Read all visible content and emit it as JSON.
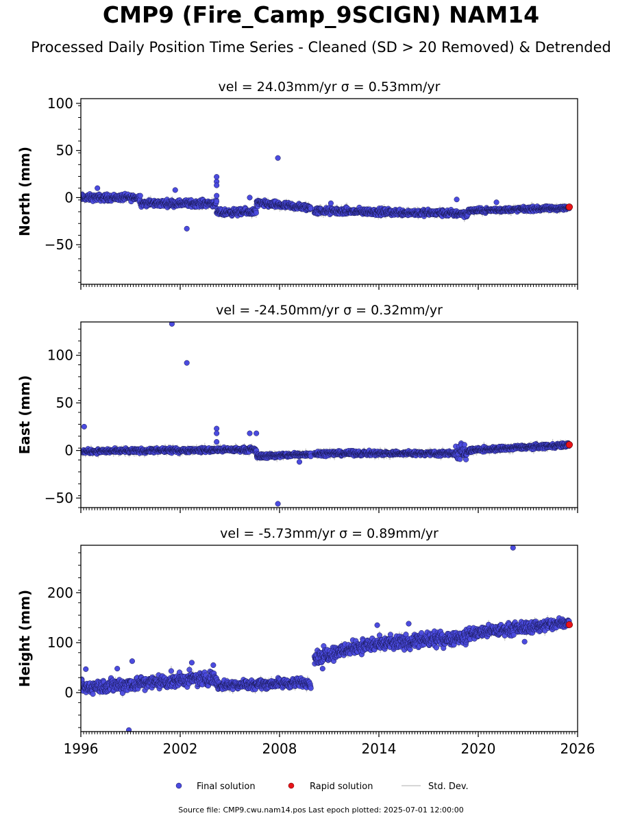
{
  "title": "CMP9 (Fire_Camp_9SCIGN) NAM14",
  "subtitle": "Processed Daily Position Time Series - Cleaned (SD > 20 Removed) & Detrended",
  "source_note": "Source file: CMP9.cwu.nam14.pos  Last epoch plotted: 2025-07-01 12:00:00",
  "colors": {
    "final": "#4b4bdf",
    "rapid": "#e8141a",
    "stddev": "#c8c8c8"
  },
  "legend": {
    "final": "Final solution",
    "rapid": "Rapid solution",
    "stddev": "Std. Dev."
  },
  "chart_data": [
    {
      "type": "scatter",
      "title": "vel = 24.03mm/yr   σ = 0.53mm/yr",
      "ylabel": "North (mm)",
      "xlim": [
        1996,
        2026
      ],
      "ylim": [
        -92,
        105
      ],
      "yticks": [
        -50,
        0,
        50,
        100
      ],
      "xticks": [
        1996,
        2002,
        2008,
        2014,
        2020,
        2026
      ],
      "segments": [
        {
          "x0": 1996.0,
          "x1": 1999.6,
          "y0": 0,
          "y1": 0,
          "spread": 3
        },
        {
          "x0": 1999.6,
          "x1": 2004.2,
          "y0": -6,
          "y1": -6,
          "spread": 3
        },
        {
          "x0": 2004.2,
          "x1": 2006.6,
          "y0": -16,
          "y1": -15,
          "spread": 3
        },
        {
          "x0": 2006.6,
          "x1": 2009.9,
          "y0": -6,
          "y1": -11,
          "spread": 3
        },
        {
          "x0": 2010.1,
          "x1": 2019.4,
          "y0": -14,
          "y1": -17,
          "spread": 3
        },
        {
          "x0": 2019.4,
          "x1": 2025.5,
          "y0": -14,
          "y1": -11,
          "spread": 2
        }
      ],
      "outliers": [
        {
          "x": 1997.0,
          "y": 10
        },
        {
          "x": 2001.7,
          "y": 8
        },
        {
          "x": 2002.4,
          "y": -33
        },
        {
          "x": 2004.2,
          "y": 22
        },
        {
          "x": 2004.2,
          "y": 17
        },
        {
          "x": 2004.2,
          "y": 13
        },
        {
          "x": 2004.2,
          "y": 2
        },
        {
          "x": 2006.2,
          "y": 0
        },
        {
          "x": 2007.9,
          "y": 42
        },
        {
          "x": 2011.1,
          "y": -6
        },
        {
          "x": 2018.7,
          "y": -2
        },
        {
          "x": 2021.1,
          "y": -5
        }
      ],
      "rapid": [
        {
          "x": 2025.5,
          "y": -10
        }
      ]
    },
    {
      "type": "scatter",
      "title": "vel = -24.50mm/yr   σ = 0.32mm/yr",
      "ylabel": "East (mm)",
      "xlim": [
        1996,
        2026
      ],
      "ylim": [
        -60,
        135
      ],
      "yticks": [
        -50,
        0,
        50,
        100
      ],
      "xticks": [
        1996,
        2002,
        2008,
        2014,
        2020,
        2026
      ],
      "segments": [
        {
          "x0": 1996.0,
          "x1": 2006.6,
          "y0": -1,
          "y1": 1,
          "spread": 2
        },
        {
          "x0": 2006.6,
          "x1": 2009.9,
          "y0": -6,
          "y1": -4,
          "spread": 2
        },
        {
          "x0": 2010.1,
          "x1": 2018.6,
          "y0": -3,
          "y1": -3,
          "spread": 2
        },
        {
          "x0": 2018.6,
          "x1": 2019.3,
          "y0": -2,
          "y1": -3,
          "spread": 8
        },
        {
          "x0": 2019.3,
          "x1": 2025.5,
          "y0": 0,
          "y1": 6,
          "spread": 2
        }
      ],
      "outliers": [
        {
          "x": 1996.2,
          "y": 25
        },
        {
          "x": 2001.5,
          "y": 133
        },
        {
          "x": 2002.4,
          "y": 92
        },
        {
          "x": 2004.2,
          "y": 23
        },
        {
          "x": 2004.2,
          "y": 18
        },
        {
          "x": 2004.2,
          "y": 9
        },
        {
          "x": 2006.2,
          "y": 18
        },
        {
          "x": 2006.6,
          "y": 18
        },
        {
          "x": 2007.9,
          "y": -56
        },
        {
          "x": 2009.2,
          "y": -12
        }
      ],
      "rapid": [
        {
          "x": 2025.5,
          "y": 6
        }
      ]
    },
    {
      "type": "scatter",
      "title": "vel = -5.73mm/yr   σ = 0.89mm/yr",
      "ylabel": "Height (mm)",
      "xlim": [
        1996,
        2026
      ],
      "ylim": [
        -78,
        295
      ],
      "yticks": [
        0,
        100,
        200
      ],
      "xticks": [
        1996,
        2002,
        2008,
        2014,
        2020,
        2026
      ],
      "xticklabels": [
        "1996",
        "2002",
        "2008",
        "2014",
        "2020",
        "2026"
      ],
      "segments": [
        {
          "x0": 1996.0,
          "x1": 2004.2,
          "y0": 10,
          "y1": 30,
          "spread": 12
        },
        {
          "x0": 2004.2,
          "x1": 2009.9,
          "y0": 15,
          "y1": 20,
          "spread": 8
        },
        {
          "x0": 2010.1,
          "x1": 2012.5,
          "y0": 70,
          "y1": 90,
          "spread": 12
        },
        {
          "x0": 2012.5,
          "x1": 2019.4,
          "y0": 92,
          "y1": 112,
          "spread": 12
        },
        {
          "x0": 2019.4,
          "x1": 2025.5,
          "y0": 118,
          "y1": 140,
          "spread": 10
        }
      ],
      "outliers": [
        {
          "x": 1996.3,
          "y": 47
        },
        {
          "x": 1998.2,
          "y": 48
        },
        {
          "x": 1999.1,
          "y": 63
        },
        {
          "x": 1998.9,
          "y": -75
        },
        {
          "x": 2002.7,
          "y": 60
        },
        {
          "x": 2004.0,
          "y": 55
        },
        {
          "x": 2010.6,
          "y": 48
        },
        {
          "x": 2013.9,
          "y": 135
        },
        {
          "x": 2015.8,
          "y": 138
        },
        {
          "x": 2022.1,
          "y": 290
        },
        {
          "x": 2022.8,
          "y": 102
        }
      ],
      "rapid": [
        {
          "x": 2025.5,
          "y": 136
        }
      ]
    }
  ]
}
